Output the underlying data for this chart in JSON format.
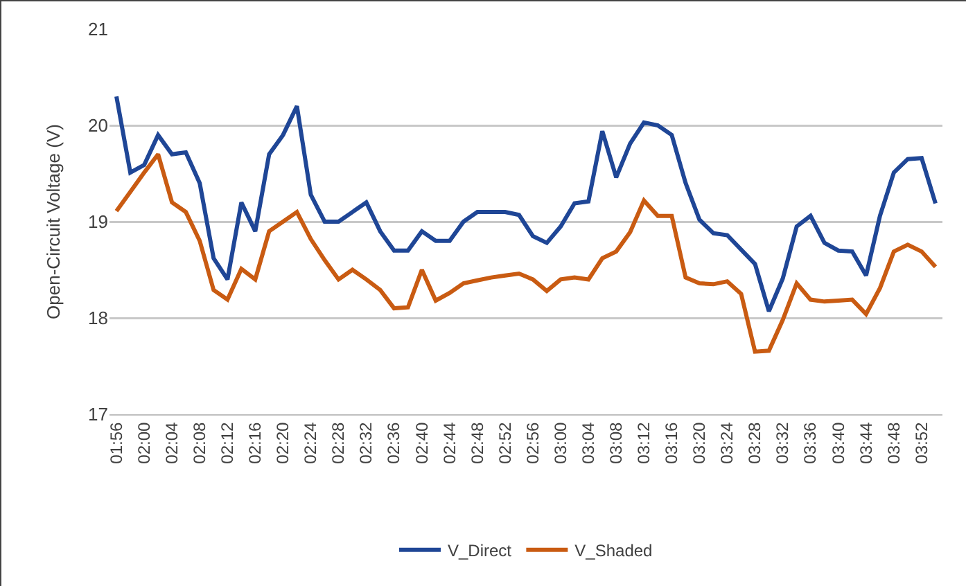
{
  "chart_data": {
    "type": "line",
    "ylabel": "Open-Circuit Voltage (V)",
    "categories": [
      "01:56",
      null,
      "02:00",
      null,
      "02:04",
      null,
      "02:08",
      null,
      "02:12",
      null,
      "02:16",
      null,
      "02:20",
      null,
      "02:24",
      null,
      "02:28",
      null,
      "02:32",
      null,
      "02:36",
      null,
      "02:40",
      null,
      "02:44",
      null,
      "02:48",
      null,
      "02:52",
      null,
      "02:56",
      null,
      "03:00",
      null,
      "03:04",
      null,
      "03:08",
      null,
      "03:12",
      null,
      "03:16",
      null,
      "03:20",
      null,
      "03:24",
      null,
      "03:28",
      null,
      "03:32",
      null,
      "03:36",
      null,
      "03:40",
      null,
      "03:44",
      null,
      "03:48",
      null,
      "03:52",
      null
    ],
    "series": [
      {
        "name": "V_Direct",
        "color": "#1f4696",
        "values": [
          20.3,
          19.51,
          19.59,
          19.9,
          19.7,
          19.72,
          19.4,
          18.62,
          18.4,
          19.2,
          18.9,
          19.7,
          19.9,
          20.2,
          19.28,
          19.0,
          19.0,
          19.1,
          19.2,
          18.9,
          18.7,
          18.7,
          18.9,
          18.8,
          18.8,
          19.0,
          19.1,
          19.1,
          19.1,
          19.07,
          18.85,
          18.78,
          18.95,
          19.19,
          19.21,
          19.94,
          19.46,
          19.81,
          20.03,
          20.0,
          19.9,
          19.4,
          19.02,
          18.88,
          18.86,
          18.71,
          18.56,
          18.07,
          18.41,
          18.95,
          19.06,
          18.78,
          18.7,
          18.69,
          18.44,
          19.06,
          19.51,
          19.65,
          19.66,
          19.19
        ]
      },
      {
        "name": "V_Shaded",
        "color": "#c95b12",
        "values": [
          19.11,
          19.31,
          19.51,
          19.7,
          19.2,
          19.1,
          18.8,
          18.29,
          18.19,
          18.51,
          18.4,
          18.9,
          19.0,
          19.1,
          18.82,
          18.6,
          18.4,
          18.5,
          18.4,
          18.29,
          18.1,
          18.11,
          18.5,
          18.18,
          18.26,
          18.36,
          18.39,
          18.42,
          18.44,
          18.46,
          18.4,
          18.28,
          18.4,
          18.42,
          18.4,
          18.62,
          18.69,
          18.89,
          19.22,
          19.06,
          19.06,
          18.42,
          18.36,
          18.35,
          18.38,
          18.25,
          17.65,
          17.66,
          17.98,
          18.36,
          18.19,
          18.17,
          18.18,
          18.19,
          18.04,
          18.31,
          18.69,
          18.76,
          18.69,
          18.53
        ]
      }
    ],
    "ylim": [
      17,
      21
    ],
    "yticks": [
      17,
      18,
      19,
      20,
      21
    ],
    "grid": "y",
    "legend": "bottom",
    "marker": "none",
    "line_style": "solid"
  }
}
